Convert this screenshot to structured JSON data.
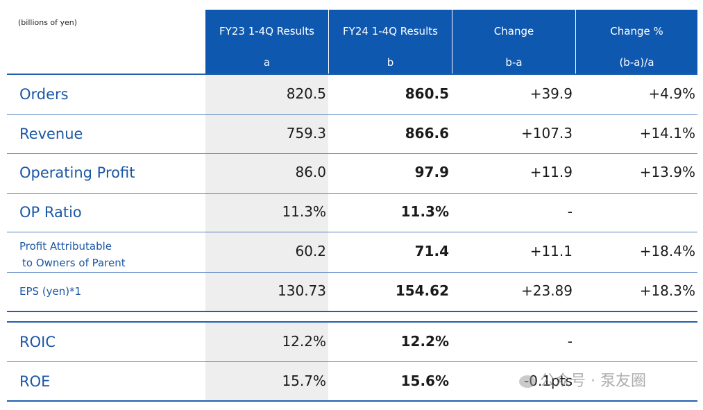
{
  "unit_label": "(billions of yen)",
  "columns": [
    {
      "line1": "FY23 1-4Q Results",
      "line2": "a"
    },
    {
      "line1": "FY24 1-4Q Results",
      "line2": "b"
    },
    {
      "line1": "Change",
      "line2": "b-a"
    },
    {
      "line1": "Change %",
      "line2": "(b-a)/a"
    }
  ],
  "rows": [
    {
      "label": "Orders",
      "fy23": "820.5",
      "fy24": "860.5",
      "change": "+39.9",
      "change_pct": "+4.9%"
    },
    {
      "label": "Revenue",
      "fy23": "759.3",
      "fy24": "866.6",
      "change": "+107.3",
      "change_pct": "+14.1%"
    },
    {
      "label": "Operating Profit",
      "fy23": "86.0",
      "fy24": "97.9",
      "change": "+11.9",
      "change_pct": "+13.9%"
    },
    {
      "label": "OP Ratio",
      "fy23": "11.3%",
      "fy24": "11.3%",
      "change": "-",
      "change_pct": ""
    },
    {
      "label_line1": "Profit Attributable",
      "label_line2": "to Owners of Parent",
      "fy23": "60.2",
      "fy24": "71.4",
      "change": "+11.1",
      "change_pct": "+18.4%"
    },
    {
      "label": "EPS (yen)*1",
      "fy23": "130.73",
      "fy24": "154.62",
      "change": "+23.89",
      "change_pct": "+18.3%"
    }
  ],
  "rows2": [
    {
      "label": "ROIC",
      "fy23": "12.2%",
      "fy24": "12.2%",
      "change": "-",
      "change_pct": ""
    },
    {
      "label": "ROE",
      "fy23": "15.7%",
      "fy24": "15.6%",
      "change": "-0.1pts",
      "change_pct": ""
    }
  ],
  "watermark": "公众号 · 泵友圈",
  "colors": {
    "header_bg": "#0f58b0",
    "label_text": "#1b57a5",
    "highlight_col": "#eeeeee"
  }
}
